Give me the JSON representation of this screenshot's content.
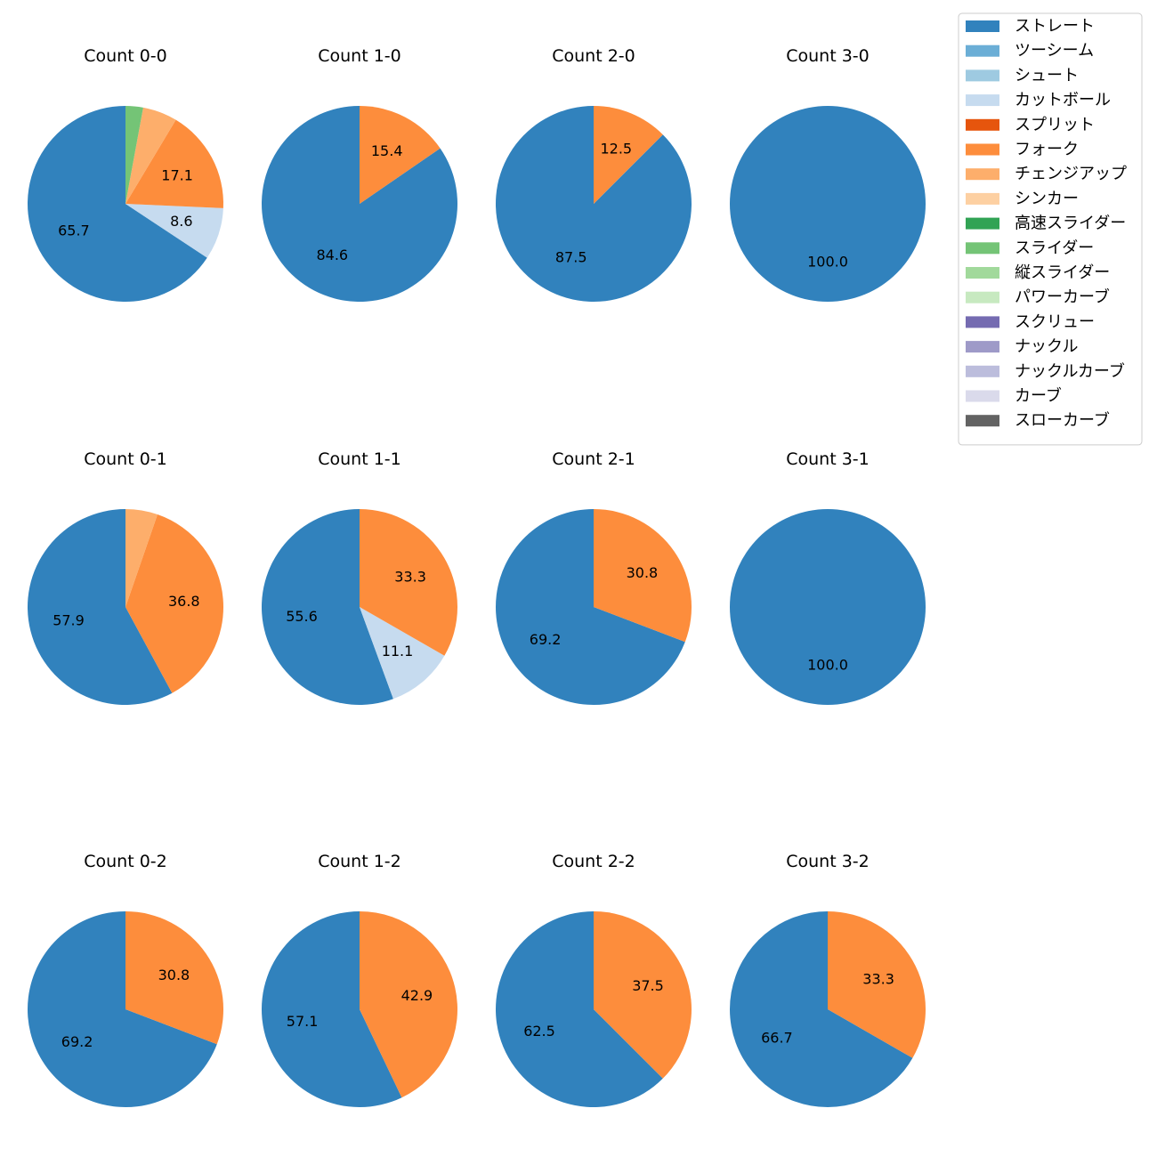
{
  "chart_data": {
    "type": "pie",
    "legend": {
      "position": "top-right",
      "entries": [
        {
          "name": "ストレート",
          "color": "#3182bd"
        },
        {
          "name": "ツーシーム",
          "color": "#6baed6"
        },
        {
          "name": "シュート",
          "color": "#9ecae1"
        },
        {
          "name": "カットボール",
          "color": "#c6dbef"
        },
        {
          "name": "スプリット",
          "color": "#e6550d"
        },
        {
          "name": "フォーク",
          "color": "#fd8d3c"
        },
        {
          "name": "チェンジアップ",
          "color": "#fdae6b"
        },
        {
          "name": "シンカー",
          "color": "#fdd0a2"
        },
        {
          "name": "高速スライダー",
          "color": "#31a354"
        },
        {
          "name": "スライダー",
          "color": "#74c476"
        },
        {
          "name": "縦スライダー",
          "color": "#a1d99b"
        },
        {
          "name": "パワーカーブ",
          "color": "#c7e9c0"
        },
        {
          "name": "スクリュー",
          "color": "#756bb1"
        },
        {
          "name": "ナックル",
          "color": "#9e9ac8"
        },
        {
          "name": "ナックルカーブ",
          "color": "#bcbddc"
        },
        {
          "name": "カーブ",
          "color": "#dadaeb"
        },
        {
          "name": "スローカーブ",
          "color": "#636363"
        }
      ]
    },
    "pies": [
      {
        "title": "Count 0-0",
        "slices": [
          {
            "pitch": "ストレート",
            "value": 65.7,
            "label": "65.7"
          },
          {
            "pitch": "カットボール",
            "value": 8.6,
            "label": "8.6"
          },
          {
            "pitch": "フォーク",
            "value": 17.1,
            "label": "17.1"
          },
          {
            "pitch": "チェンジアップ",
            "value": 5.7,
            "label": ""
          },
          {
            "pitch": "スライダー",
            "value": 2.9,
            "label": ""
          }
        ]
      },
      {
        "title": "Count 1-0",
        "slices": [
          {
            "pitch": "ストレート",
            "value": 84.6,
            "label": "84.6"
          },
          {
            "pitch": "フォーク",
            "value": 15.4,
            "label": "15.4"
          }
        ]
      },
      {
        "title": "Count 2-0",
        "slices": [
          {
            "pitch": "ストレート",
            "value": 87.5,
            "label": "87.5"
          },
          {
            "pitch": "フォーク",
            "value": 12.5,
            "label": "12.5"
          }
        ]
      },
      {
        "title": "Count 3-0",
        "slices": [
          {
            "pitch": "ストレート",
            "value": 100.0,
            "label": "100.0"
          }
        ]
      },
      {
        "title": "Count 0-1",
        "slices": [
          {
            "pitch": "ストレート",
            "value": 57.9,
            "label": "57.9"
          },
          {
            "pitch": "フォーク",
            "value": 36.8,
            "label": "36.8"
          },
          {
            "pitch": "チェンジアップ",
            "value": 5.3,
            "label": ""
          }
        ]
      },
      {
        "title": "Count 1-1",
        "slices": [
          {
            "pitch": "ストレート",
            "value": 55.6,
            "label": "55.6"
          },
          {
            "pitch": "カットボール",
            "value": 11.1,
            "label": "11.1"
          },
          {
            "pitch": "フォーク",
            "value": 33.3,
            "label": "33.3"
          }
        ]
      },
      {
        "title": "Count 2-1",
        "slices": [
          {
            "pitch": "ストレート",
            "value": 69.2,
            "label": "69.2"
          },
          {
            "pitch": "フォーク",
            "value": 30.8,
            "label": "30.8"
          }
        ]
      },
      {
        "title": "Count 3-1",
        "slices": [
          {
            "pitch": "ストレート",
            "value": 100.0,
            "label": "100.0"
          }
        ]
      },
      {
        "title": "Count 0-2",
        "slices": [
          {
            "pitch": "ストレート",
            "value": 69.2,
            "label": "69.2"
          },
          {
            "pitch": "フォーク",
            "value": 30.8,
            "label": "30.8"
          }
        ]
      },
      {
        "title": "Count 1-2",
        "slices": [
          {
            "pitch": "ストレート",
            "value": 57.1,
            "label": "57.1"
          },
          {
            "pitch": "フォーク",
            "value": 42.9,
            "label": "42.9"
          }
        ]
      },
      {
        "title": "Count 2-2",
        "slices": [
          {
            "pitch": "ストレート",
            "value": 62.5,
            "label": "62.5"
          },
          {
            "pitch": "フォーク",
            "value": 37.5,
            "label": "37.5"
          }
        ]
      },
      {
        "title": "Count 3-2",
        "slices": [
          {
            "pitch": "ストレート",
            "value": 66.7,
            "label": "66.7"
          },
          {
            "pitch": "フォーク",
            "value": 33.3,
            "label": "33.3"
          }
        ]
      }
    ]
  }
}
